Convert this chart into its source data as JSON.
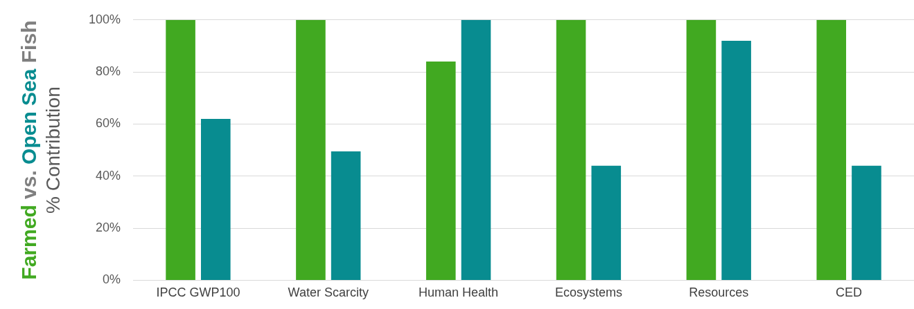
{
  "chart_data": {
    "type": "bar",
    "categories": [
      "IPCC GWP100",
      "Water Scarcity",
      "Human Health",
      "Ecosystems",
      "Resources",
      "CED"
    ],
    "series": [
      {
        "name": "Farmed",
        "color": "#41a921",
        "values": [
          100,
          100,
          84,
          100,
          100,
          100
        ]
      },
      {
        "name": "Open Sea",
        "color": "#088c90",
        "values": [
          62,
          49.5,
          100,
          44,
          92,
          44
        ]
      }
    ],
    "ylabel": "% Contribution",
    "annotations": [
      "vs.",
      "Fish"
    ],
    "ylim": [
      0,
      100
    ],
    "yticks": [
      {
        "value": 0,
        "label": "0%"
      },
      {
        "value": 20,
        "label": "20%"
      },
      {
        "value": 40,
        "label": "40%"
      },
      {
        "value": 60,
        "label": "60%"
      },
      {
        "value": 80,
        "label": "80%"
      },
      {
        "value": 100,
        "label": "100%"
      }
    ],
    "grid": "y",
    "legend": false
  }
}
